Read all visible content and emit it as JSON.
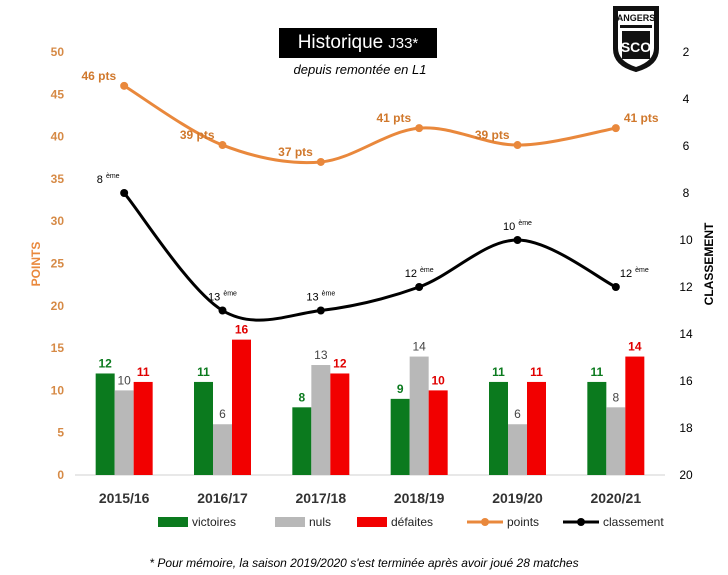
{
  "header": {
    "title": "Historique",
    "title_suffix": "J33*",
    "subtitle": "depuis remontée en L1"
  },
  "logo": {
    "text": "ANGERS",
    "monogram": "SCO"
  },
  "footnote": "*  Pour mémoire, la saison 2019/2020 s'est terminée après avoir joué 28 matches",
  "chart_data": {
    "type": "bar",
    "categories": [
      "2015/16",
      "2016/17",
      "2017/18",
      "2018/19",
      "2019/20",
      "2020/21"
    ],
    "ylabel": "POINTS",
    "y2label": "CLASSEMENT",
    "ylim": [
      0,
      50
    ],
    "yticks": [
      "0",
      "5",
      "10",
      "15",
      "20",
      "25",
      "30",
      "35",
      "40",
      "45",
      "50"
    ],
    "y2lim": [
      20,
      2
    ],
    "y2ticks": [
      "2",
      "4",
      "6",
      "8",
      "10",
      "12",
      "14",
      "16",
      "18",
      "20"
    ],
    "series": [
      {
        "name": "victoires",
        "type": "bar",
        "color": "#0b7a1e",
        "values": [
          12,
          11,
          8,
          9,
          11,
          11
        ],
        "labels": [
          "12",
          "11",
          "8",
          "9",
          "11",
          "11"
        ]
      },
      {
        "name": "nuls",
        "type": "bar",
        "color": "#b8b8b8",
        "values": [
          10,
          6,
          13,
          14,
          6,
          8
        ],
        "labels": [
          "10",
          "6",
          "13",
          "14",
          "6",
          "8"
        ]
      },
      {
        "name": "défaites",
        "type": "bar",
        "color": "#f20000",
        "values": [
          11,
          16,
          12,
          10,
          11,
          14
        ],
        "labels": [
          "11",
          "16",
          "12",
          "10",
          "11",
          "14"
        ]
      },
      {
        "name": "points",
        "type": "line",
        "axis": "left",
        "color": "#e9883c",
        "values": [
          46,
          39,
          37,
          41,
          39,
          41
        ],
        "labels": [
          "46 pts",
          "39 pts",
          "37 pts",
          "41 pts",
          "39 pts",
          "41 pts"
        ]
      },
      {
        "name": "classement",
        "type": "line",
        "axis": "right",
        "color": "#000000",
        "values": [
          8,
          13,
          13,
          12,
          10,
          12
        ],
        "labels": [
          "8",
          "13",
          "13",
          "12",
          "10",
          "12"
        ],
        "label_suffix": "ème"
      }
    ],
    "legend_position": "bottom",
    "grid": false
  }
}
